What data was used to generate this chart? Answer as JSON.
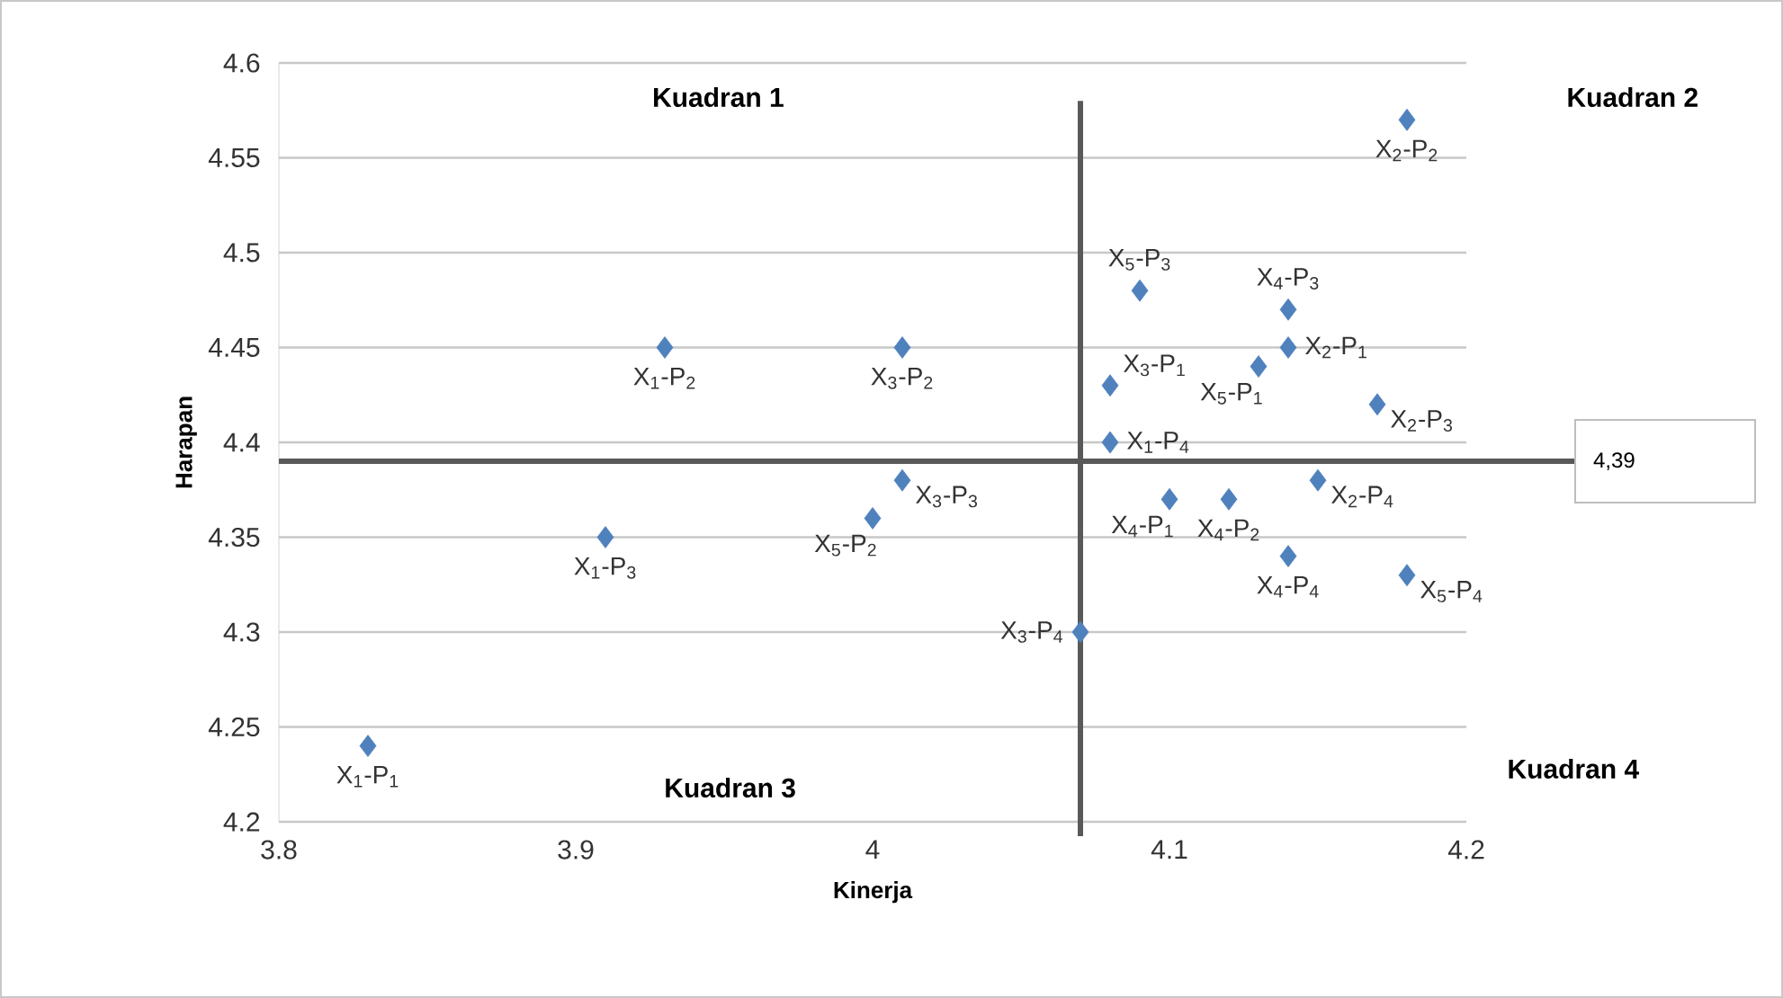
{
  "chart_data": {
    "type": "scatter",
    "xlabel": "Kinerja",
    "ylabel": "Harapan",
    "x": [
      3.83,
      3.93,
      3.91,
      4.08,
      4.14,
      4.18,
      4.17,
      4.15,
      4.08,
      4.01,
      4.01,
      4.07,
      4.1,
      4.12,
      4.14,
      4.14,
      4.13,
      4.0,
      4.09,
      4.18
    ],
    "values": [
      4.24,
      4.45,
      4.35,
      4.4,
      4.45,
      4.57,
      4.42,
      4.38,
      4.43,
      4.45,
      4.38,
      4.3,
      4.37,
      4.37,
      4.47,
      4.34,
      4.44,
      4.36,
      4.48,
      4.33
    ],
    "value_labels": [
      "X$_{1}$-P$_{1}$",
      "X$_{1}$-P$_{2}$",
      "X$_{1}$-P$_{3}$",
      "X$_{1}$-P$_{4}$",
      "X$_{2}$-P$_{1}$",
      "X$_{2}$-P$_{2}$",
      "X$_{2}$-P$_{3}$",
      "X$_{2}$-P$_{4}$",
      "X$_{3}$-P$_{1}$",
      "X$_{3}$-P$_{2}$",
      "X$_{3}$-P$_{3}$",
      "X$_{3}$-P$_{4}$",
      "X$_{4}$-P$_{1}$",
      "X$_{4}$-P$_{2}$",
      "X$_{4}$-P$_{3}$",
      "X$_{4}$-P$_{4}$",
      "X$_{5}$-P$_{1}$",
      "X$_{5}$-P$_{2}$",
      "X$_{5}$-P$_{3}$",
      "X$_{5}$-P$_{4}$"
    ],
    "color": "#4f81bd",
    "marker": "diamond",
    "xlim": [
      3.8,
      4.2
    ],
    "xticks": [
      3.8,
      3.9,
      4,
      4.1,
      4.2
    ],
    "ylim": [
      4.2,
      4.6
    ],
    "yticks": [
      4.2,
      4.25,
      4.3,
      4.35,
      4.4,
      4.45,
      4.5,
      4.55,
      4.6
    ],
    "grid": "y",
    "ref_lines": [
      {
        "axis": "y",
        "value": 4.39,
        "label": "4,39",
        "color": "#595959"
      },
      {
        "axis": "x",
        "value": 4.07,
        "color": "#595959"
      }
    ],
    "annotations": [
      "Kuadran 1",
      "Kuadran 2",
      "Kuadran 3",
      "Kuadran 4"
    ]
  }
}
